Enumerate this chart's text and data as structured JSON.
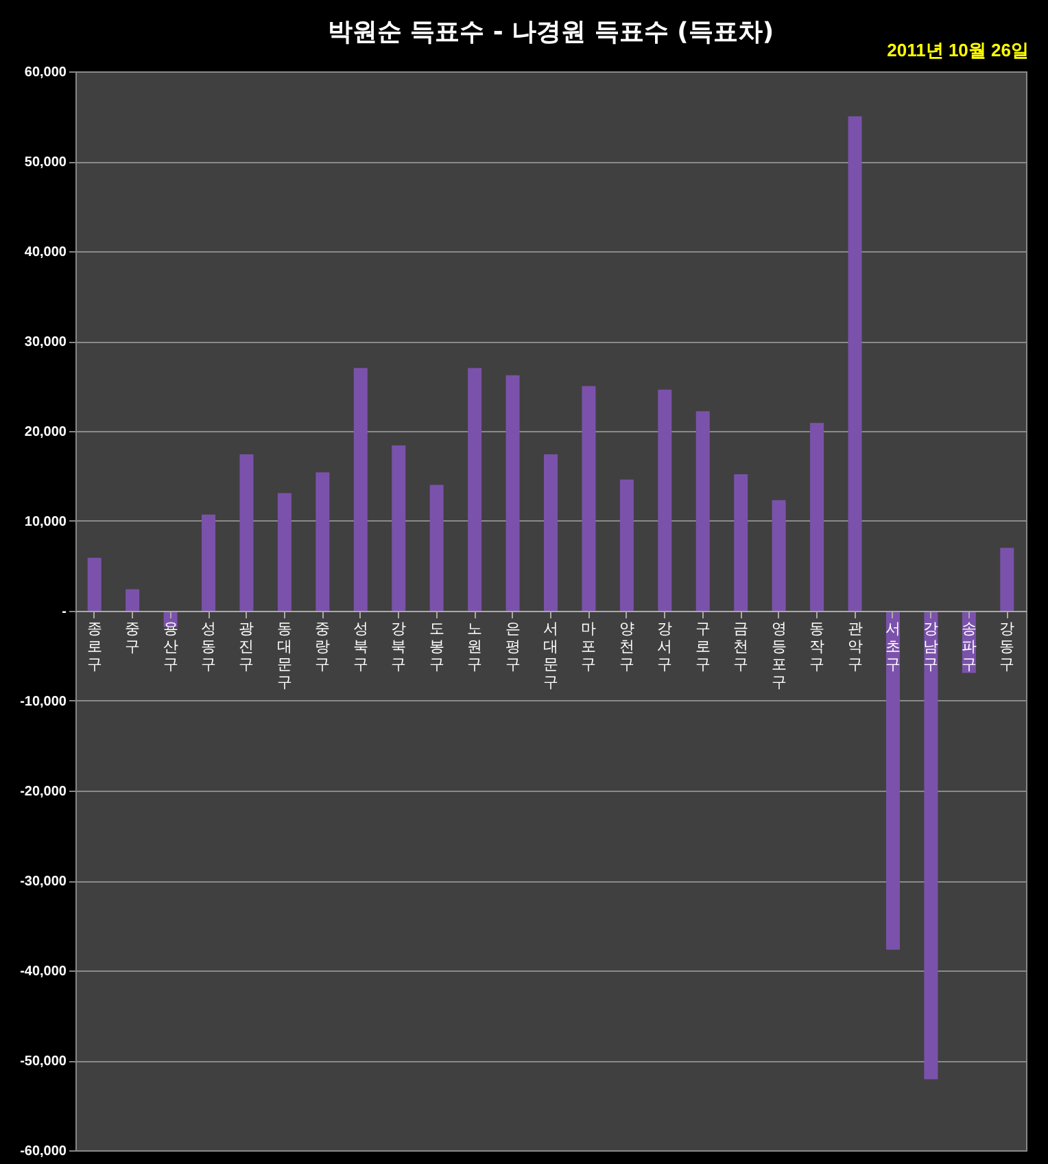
{
  "chart_data": {
    "type": "bar",
    "title": "박원순 득표수 - 나경원 득표수 (득표차)",
    "subtitle": "2011년 10월 26일",
    "categories": [
      "종로구",
      "중구",
      "용산구",
      "성동구",
      "광진구",
      "동대문구",
      "중랑구",
      "성북구",
      "강북구",
      "도봉구",
      "노원구",
      "은평구",
      "서대문구",
      "마포구",
      "양천구",
      "강서구",
      "구로구",
      "금천구",
      "영등포구",
      "동작구",
      "관악구",
      "서초구",
      "강남구",
      "송파구",
      "강동구"
    ],
    "values": [
      5900,
      2400,
      -1800,
      10700,
      17400,
      13100,
      15400,
      27000,
      18400,
      14000,
      27000,
      26200,
      17400,
      25000,
      14600,
      24600,
      22200,
      15200,
      12300,
      20900,
      55000,
      -37700,
      -52100,
      -6900,
      7000
    ],
    "color": "#7b52ab",
    "ylim": [
      -60000,
      60000
    ],
    "yticks": [
      {
        "value": -60000,
        "label": "-60,000"
      },
      {
        "value": -50000,
        "label": "-50,000"
      },
      {
        "value": -40000,
        "label": "-40,000"
      },
      {
        "value": -30000,
        "label": "-30,000"
      },
      {
        "value": -20000,
        "label": "-20,000"
      },
      {
        "value": -10000,
        "label": "-10,000"
      },
      {
        "value": 0,
        "label": "-"
      },
      {
        "value": 10000,
        "label": "10,000"
      },
      {
        "value": 20000,
        "label": "20,000"
      },
      {
        "value": 30000,
        "label": "30,000"
      },
      {
        "value": 40000,
        "label": "40,000"
      },
      {
        "value": 50000,
        "label": "50,000"
      },
      {
        "value": 60000,
        "label": "60,000"
      }
    ],
    "grid": "y"
  }
}
